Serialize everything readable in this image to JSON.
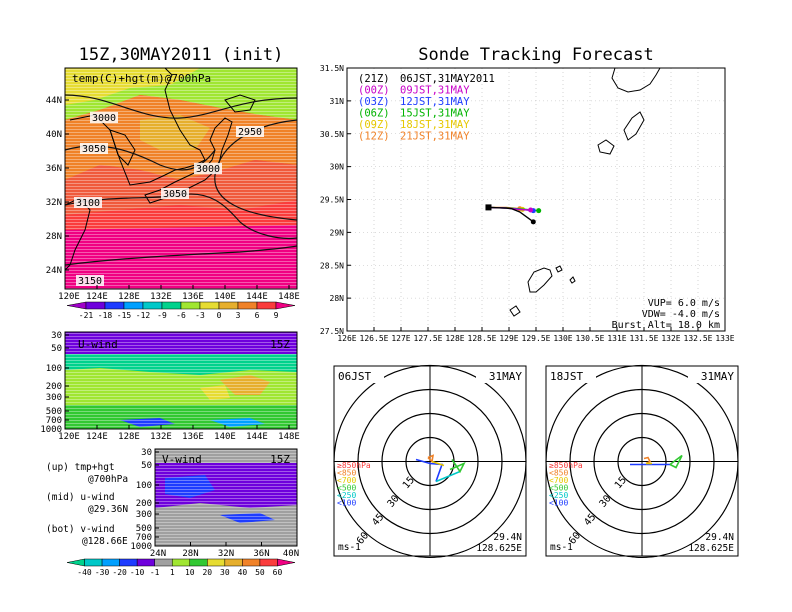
{
  "titles": {
    "left": "15Z,30MAY2011 (init)",
    "right": "Sonde Tracking Forecast"
  },
  "map700": {
    "label": "temp(C)+hgt(m)@700hPa",
    "contour_labels": [
      "3000",
      "3050",
      "2950",
      "3000",
      "3050",
      "3100",
      "3150"
    ],
    "lat_ticks": [
      "44N",
      "40N",
      "36N",
      "32N",
      "28N",
      "24N"
    ],
    "lon_ticks": [
      "120E",
      "124E",
      "128E",
      "132E",
      "136E",
      "140E",
      "144E",
      "148E"
    ],
    "colorbar_labels": [
      "-21",
      "-18",
      "-15",
      "-12",
      "-9",
      "-6",
      "-3",
      "0",
      "3",
      "6",
      "9"
    ],
    "colorbar_colors": [
      "#a000c8",
      "#6e00dc",
      "#1e3cff",
      "#00a0ff",
      "#00c8c8",
      "#00d28c",
      "#a0e632",
      "#e6dc32",
      "#e6af2d",
      "#f08228",
      "#fa3c3c",
      "#f00082"
    ]
  },
  "uwind": {
    "label": "U-wind",
    "time": "15Z",
    "p_ticks": [
      "30",
      "50",
      "100",
      "200",
      "300",
      "500",
      "700",
      "1000"
    ],
    "lon_ticks": [
      "120E",
      "124E",
      "128E",
      "132E",
      "136E",
      "140E",
      "144E",
      "148E"
    ]
  },
  "vwind": {
    "label": "V-wind",
    "time": "15Z",
    "p_ticks": [
      "30",
      "50",
      "100",
      "200",
      "300",
      "500",
      "700",
      "1000"
    ],
    "lat_ticks": [
      "24N",
      "28N",
      "32N",
      "36N",
      "40N"
    ]
  },
  "side_legend": {
    "up": [
      "(up) tmp+hgt",
      "@700hPa"
    ],
    "mid": [
      "(mid) u-wind",
      "@29.36N"
    ],
    "bot": [
      "(bot) v-wind",
      "@128.66E"
    ]
  },
  "wind_colorbar": {
    "labels": [
      "-40",
      "-30",
      "-20",
      "-10",
      "-1",
      "1",
      "10",
      "20",
      "30",
      "40",
      "50",
      "60"
    ],
    "colors": [
      "#00d28c",
      "#00c8c8",
      "#00a0ff",
      "#1e3cff",
      "#6e00dc",
      "#a0a0a0",
      "#a0e632",
      "#32c832",
      "#e6dc32",
      "#e6af2d",
      "#f08228",
      "#fa3c3c",
      "#f00082"
    ]
  },
  "track_legend": [
    {
      "tag": "(21Z)",
      "text": "06JST,31MAY2011",
      "color": "#000000"
    },
    {
      "tag": "(00Z)",
      "text": "09JST,31MAY",
      "color": "#c800c8"
    },
    {
      "tag": "(03Z)",
      "text": "12JST,31MAY",
      "color": "#1e3cff"
    },
    {
      "tag": "(06Z)",
      "text": "15JST,31MAY",
      "color": "#00b400"
    },
    {
      "tag": "(09Z)",
      "text": "18JST,31MAY",
      "color": "#e6c800"
    },
    {
      "tag": "(12Z)",
      "text": "21JST,31MAY",
      "color": "#f08228"
    }
  ],
  "track_params": {
    "vup": "VUP= 6.0 m/s",
    "vdw": "VDW= -4.0 m/s",
    "burst": "Burst Alt= 18.0 km"
  },
  "track_axes": {
    "lat_ticks": [
      "31.5N",
      "31N",
      "30.5N",
      "30N",
      "29.5N",
      "29N",
      "28.5N",
      "28N",
      "27.5N"
    ],
    "lon_ticks": [
      "126E",
      "126.5E",
      "127E",
      "127.5E",
      "128E",
      "128.5E",
      "129E",
      "129.5E",
      "130E",
      "130.5E",
      "131E",
      "131.5E",
      "132E",
      "132.5E",
      "133E"
    ]
  },
  "hodographs": [
    {
      "time": "06JST",
      "date": "31MAY",
      "lat": "29.4N",
      "lon": "128.625E",
      "unit": "ms-1"
    },
    {
      "time": "18JST",
      "date": "31MAY",
      "lat": "29.4N",
      "lon": "128.625E",
      "unit": "ms-1"
    }
  ],
  "hodo_ring_labels": [
    "15",
    "30",
    "45",
    "60"
  ],
  "hodo_levels": [
    {
      "label": "≥850hPa",
      "color": "#fa3c3c"
    },
    {
      "label": "<850",
      "color": "#f08228"
    },
    {
      "label": "<700",
      "color": "#e6c800"
    },
    {
      "label": "<500",
      "color": "#32c832"
    },
    {
      "label": "<250",
      "color": "#00c8c8"
    },
    {
      "label": "<100",
      "color": "#1e3cff"
    }
  ],
  "chart_data": [
    {
      "type": "line",
      "title": "Sonde Tracking Forecast",
      "xlabel": "",
      "ylabel": "",
      "xlim": [
        126,
        133
      ],
      "ylim": [
        27.5,
        31.5
      ],
      "series": [
        {
          "name": "06JST,31MAY2011",
          "x": [
            128.62,
            128.95,
            129.05,
            129.2,
            129.45
          ],
          "y": [
            29.38,
            29.37,
            29.36,
            29.31,
            29.16
          ]
        },
        {
          "name": "09JST,31MAY",
          "x": [
            128.62,
            128.95,
            129.15,
            129.4
          ],
          "y": [
            29.38,
            29.37,
            29.35,
            29.34
          ]
        },
        {
          "name": "12JST,31MAY",
          "x": [
            128.62,
            128.95,
            129.2,
            129.45
          ],
          "y": [
            29.38,
            29.37,
            29.35,
            29.33
          ]
        },
        {
          "name": "15JST,31MAY",
          "x": [
            128.62,
            129.0,
            129.3,
            129.55
          ],
          "y": [
            29.38,
            29.37,
            29.35,
            29.33
          ]
        },
        {
          "name": "18JST,31MAY",
          "x": [
            128.62,
            129.0,
            129.25
          ],
          "y": [
            29.38,
            29.37,
            29.35
          ]
        },
        {
          "name": "21JST,31MAY",
          "x": [
            128.62,
            128.95,
            129.2
          ],
          "y": [
            29.38,
            29.38,
            29.36
          ]
        }
      ]
    }
  ]
}
